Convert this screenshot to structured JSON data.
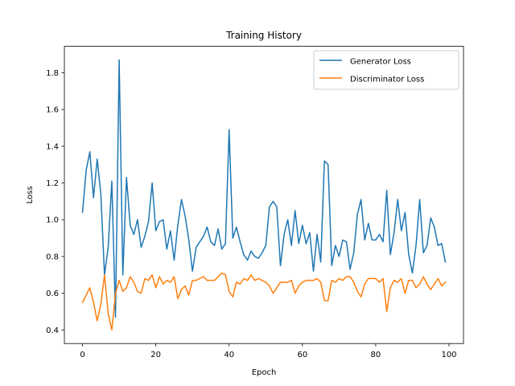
{
  "chart_data": {
    "type": "line",
    "title": "Training History",
    "xlabel": "Epoch",
    "ylabel": "Loss",
    "xlim": [
      -4.95,
      103.95
    ],
    "ylim": [
      0.3263,
      1.9437
    ],
    "xticks": [
      0,
      20,
      40,
      60,
      80,
      100
    ],
    "yticks": [
      0.4,
      0.6,
      0.8,
      1.0,
      1.2,
      1.4,
      1.6,
      1.8
    ],
    "grid": false,
    "legend_position": "top-right",
    "x": [
      0,
      1,
      2,
      3,
      4,
      5,
      6,
      7,
      8,
      9,
      10,
      11,
      12,
      13,
      14,
      15,
      16,
      17,
      18,
      19,
      20,
      21,
      22,
      23,
      24,
      25,
      26,
      27,
      28,
      29,
      30,
      31,
      32,
      33,
      34,
      35,
      36,
      37,
      38,
      39,
      40,
      41,
      42,
      43,
      44,
      45,
      46,
      47,
      48,
      49,
      50,
      51,
      52,
      53,
      54,
      55,
      56,
      57,
      58,
      59,
      60,
      61,
      62,
      63,
      64,
      65,
      66,
      67,
      68,
      69,
      70,
      71,
      72,
      73,
      74,
      75,
      76,
      77,
      78,
      79,
      80,
      81,
      82,
      83,
      84,
      85,
      86,
      87,
      88,
      89,
      90,
      91,
      92,
      93,
      94,
      95,
      96,
      97,
      98,
      99
    ],
    "series": [
      {
        "name": "Generator Loss",
        "color": "#1f77b4",
        "values": [
          1.04,
          1.27,
          1.37,
          1.12,
          1.33,
          1.14,
          0.7,
          0.85,
          1.21,
          0.47,
          1.87,
          0.7,
          1.23,
          0.97,
          0.92,
          1.0,
          0.85,
          0.91,
          0.99,
          1.2,
          0.94,
          0.99,
          1.0,
          0.84,
          0.94,
          0.78,
          0.97,
          1.11,
          1.02,
          0.89,
          0.72,
          0.85,
          0.88,
          0.91,
          0.96,
          0.88,
          0.86,
          0.95,
          0.84,
          0.87,
          1.49,
          0.9,
          0.96,
          0.88,
          0.81,
          0.78,
          0.83,
          0.8,
          0.79,
          0.82,
          0.86,
          1.07,
          1.1,
          1.07,
          0.75,
          0.92,
          1.0,
          0.86,
          1.05,
          0.87,
          0.97,
          0.87,
          0.93,
          0.72,
          0.92,
          0.77,
          1.32,
          1.3,
          0.75,
          0.86,
          0.8,
          0.89,
          0.88,
          0.73,
          0.82,
          1.03,
          1.11,
          0.89,
          0.98,
          0.89,
          0.89,
          0.92,
          0.88,
          1.16,
          0.81,
          0.93,
          1.11,
          0.94,
          1.04,
          0.81,
          0.71,
          0.86,
          1.11,
          0.82,
          0.86,
          1.01,
          0.96,
          0.86,
          0.87,
          0.77
        ]
      },
      {
        "name": "Discriminator Loss",
        "color": "#ff7f0e",
        "values": [
          0.55,
          0.59,
          0.63,
          0.55,
          0.45,
          0.54,
          0.7,
          0.49,
          0.4,
          0.6,
          0.67,
          0.61,
          0.63,
          0.69,
          0.66,
          0.61,
          0.6,
          0.68,
          0.67,
          0.7,
          0.63,
          0.69,
          0.65,
          0.67,
          0.66,
          0.69,
          0.57,
          0.62,
          0.64,
          0.59,
          0.67,
          0.67,
          0.68,
          0.69,
          0.67,
          0.67,
          0.67,
          0.69,
          0.71,
          0.7,
          0.61,
          0.58,
          0.66,
          0.65,
          0.68,
          0.67,
          0.7,
          0.67,
          0.68,
          0.67,
          0.66,
          0.64,
          0.6,
          0.63,
          0.66,
          0.66,
          0.66,
          0.67,
          0.6,
          0.64,
          0.66,
          0.67,
          0.67,
          0.67,
          0.68,
          0.66,
          0.56,
          0.56,
          0.67,
          0.66,
          0.68,
          0.67,
          0.69,
          0.69,
          0.66,
          0.61,
          0.58,
          0.65,
          0.68,
          0.68,
          0.68,
          0.66,
          0.68,
          0.5,
          0.63,
          0.67,
          0.66,
          0.68,
          0.6,
          0.67,
          0.67,
          0.63,
          0.65,
          0.69,
          0.65,
          0.62,
          0.65,
          0.68,
          0.64,
          0.66
        ]
      }
    ]
  }
}
